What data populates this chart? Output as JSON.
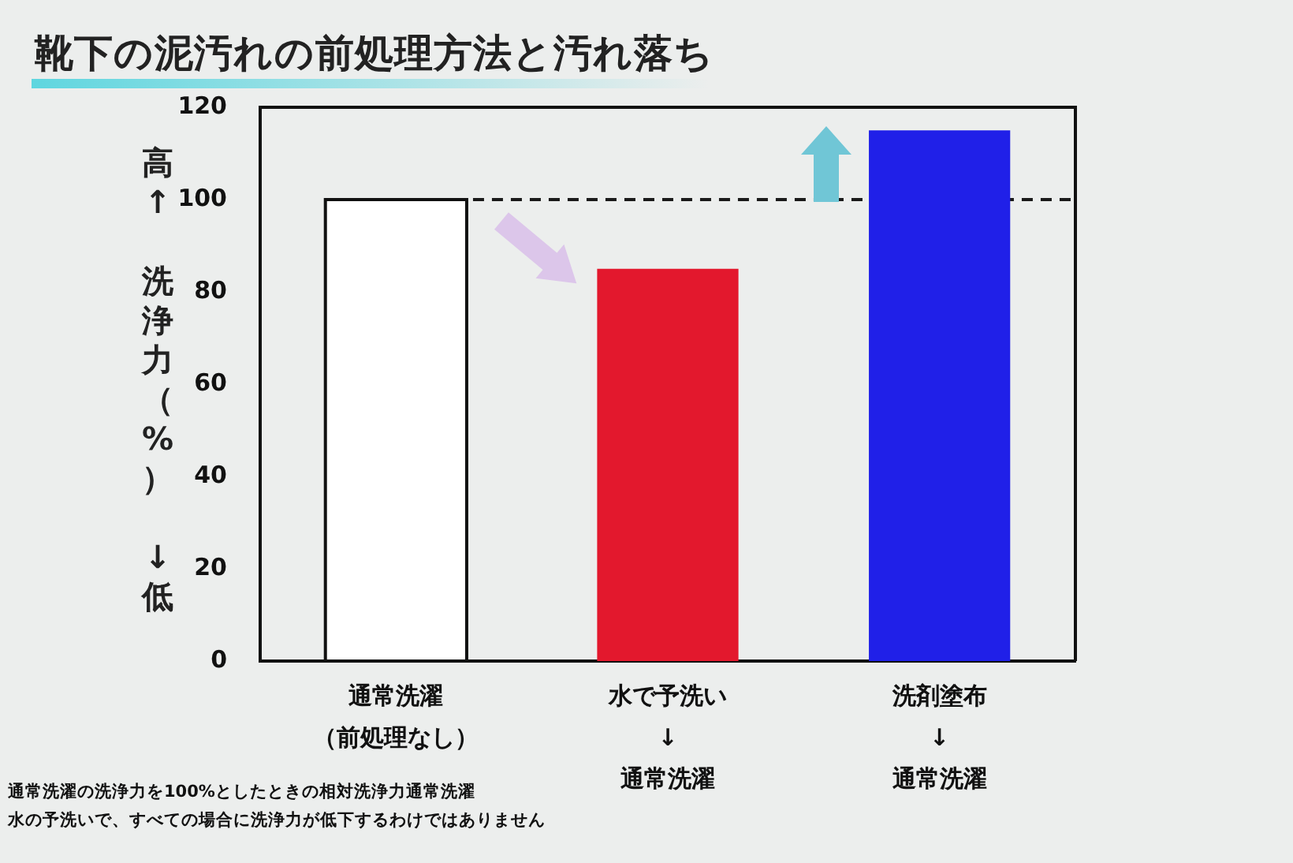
{
  "chart_data": {
    "type": "bar",
    "title": "靴下の泥汚れの前処理方法と汚れ落ち",
    "ylabel": "高↑　洗浄力（%）　↓低",
    "categories": [
      "通常洗濯（前処理なし）",
      "水で予洗い\n↓\n通常洗濯",
      "洗剤塗布\n↓\n通常洗濯"
    ],
    "values": [
      100,
      85,
      115
    ],
    "colors": [
      "#ffffff",
      "#e3182d",
      "#2020e8"
    ],
    "ylim": [
      0,
      120
    ],
    "yticks": [
      0,
      20,
      40,
      60,
      80,
      100,
      120
    ],
    "ref_lines": [
      {
        "axis": "y",
        "value": 100,
        "line_style": "dashed",
        "color": "#1a1a1a"
      }
    ],
    "annotations": [
      "通常洗濯の洗浄力を100%としたときの相対洗浄力通常洗濯",
      "水の予洗いで、すべての場合に洗浄力が低下するわけではありません"
    ]
  }
}
